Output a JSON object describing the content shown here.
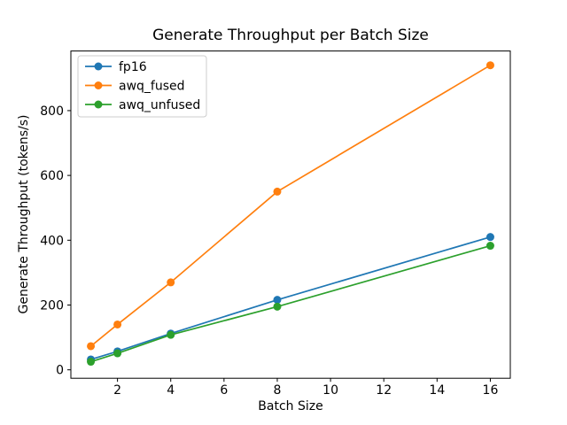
{
  "chart_data": {
    "type": "line",
    "title": "Generate Throughput per Batch Size",
    "xlabel": "Batch Size",
    "ylabel": "Generate Throughput (tokens/s)",
    "x": [
      1,
      2,
      4,
      8,
      16
    ],
    "series": [
      {
        "name": "fp16",
        "color": "#1f77b4",
        "values": [
          32,
          57,
          112,
          216,
          410
        ]
      },
      {
        "name": "awq_fused",
        "color": "#ff7f0e",
        "values": [
          73,
          140,
          270,
          550,
          940
        ]
      },
      {
        "name": "awq_unfused",
        "color": "#2ca02c",
        "values": [
          25,
          51,
          108,
          195,
          383
        ]
      }
    ],
    "xlim": [
      0.25,
      16.75
    ],
    "ylim": [
      -26,
      984
    ],
    "xticks": [
      2,
      4,
      6,
      8,
      10,
      12,
      14,
      16
    ],
    "yticks": [
      0,
      200,
      400,
      600,
      800
    ],
    "grid": false,
    "marker": "o",
    "legend_position": "upper left",
    "axis_color": "#000000",
    "legend_border_color": "#cccccc",
    "background_color": "#ffffff"
  }
}
